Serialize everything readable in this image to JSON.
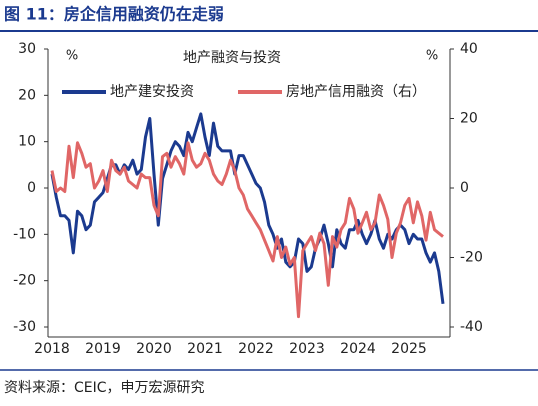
{
  "header": {
    "title": "图 11：房企信用融资仍在走弱"
  },
  "chart_data": {
    "type": "line",
    "title": "地产融资与投资",
    "y_unit": "%",
    "y2_unit": "%",
    "categories": [
      "2018",
      null,
      null,
      null,
      null,
      null,
      null,
      null,
      null,
      null,
      null,
      null,
      "2019",
      null,
      null,
      null,
      null,
      null,
      null,
      null,
      null,
      null,
      null,
      null,
      "2020",
      null,
      null,
      null,
      null,
      null,
      null,
      null,
      null,
      null,
      null,
      null,
      "2021",
      null,
      null,
      null,
      null,
      null,
      null,
      null,
      null,
      null,
      null,
      null,
      "2022",
      null,
      null,
      null,
      null,
      null,
      null,
      null,
      null,
      null,
      null,
      null,
      "2023",
      null,
      null,
      null,
      null,
      null,
      null,
      null,
      null,
      null,
      null,
      null,
      "2024",
      null,
      null,
      null,
      null,
      null,
      null,
      null,
      null,
      null,
      null,
      null,
      "2025",
      null,
      null,
      null,
      null,
      null,
      null,
      null,
      null
    ],
    "series": [
      {
        "name": "地产建安投资",
        "color": "#1b3a8f",
        "axis": "y",
        "values": [
          3,
          -2,
          -6,
          -6,
          -7,
          -14,
          -5,
          -6,
          -9,
          -8,
          -3,
          -2,
          -1,
          2,
          5,
          5,
          3,
          5,
          4,
          6,
          3,
          4,
          11,
          15,
          3,
          -8,
          2,
          5,
          8,
          10,
          9,
          7,
          12,
          10,
          13,
          16,
          11,
          7,
          14,
          9,
          8,
          8,
          8,
          3,
          7,
          7,
          5,
          3,
          1,
          0,
          -3,
          -8,
          -10,
          -13,
          -11,
          -16,
          -17,
          -16,
          -11,
          -12,
          -18,
          -17,
          -13,
          -11,
          -8,
          -12,
          -17,
          -9,
          -12,
          -13,
          -9,
          -9,
          -7,
          -10,
          -12,
          -10,
          -7,
          -11,
          -13,
          -10,
          -11,
          -9,
          -8,
          -9,
          -12,
          -10,
          -11,
          -11,
          -14,
          -16,
          -14,
          -18,
          -25
        ]
      },
      {
        "name": "房地产信用融资（右）",
        "color": "#e06666",
        "axis": "y2",
        "values": [
          5,
          -1,
          0,
          -1,
          12,
          3,
          13,
          10,
          6,
          7,
          0,
          2,
          5,
          -1,
          8,
          5,
          4,
          6,
          2,
          1,
          0,
          4,
          3,
          3,
          -5,
          -8,
          9,
          10,
          6,
          9,
          7,
          4,
          13,
          8,
          6,
          7,
          10,
          8,
          4,
          2,
          1,
          4,
          8,
          5,
          0,
          -2,
          -6,
          -8,
          -10,
          -12,
          -15,
          -18,
          -21,
          -14,
          -20,
          -17,
          -22,
          -20,
          -37,
          -18,
          -16,
          -14,
          -18,
          -13,
          -16,
          -28,
          -14,
          -17,
          -12,
          -10,
          -3,
          -6,
          -13,
          -10,
          -7,
          -12,
          -10,
          -2,
          -5,
          -9,
          -20,
          -13,
          -10,
          -5,
          -3,
          -10,
          -4,
          -8,
          -15,
          -7,
          -12,
          -13,
          -14
        ]
      }
    ],
    "ylim": [
      -30,
      30
    ],
    "yticks": [
      -30,
      -20,
      -10,
      0,
      10,
      20,
      30
    ],
    "y2lim": [
      -40,
      40
    ],
    "y2ticks": [
      -40,
      -20,
      0,
      20,
      40
    ],
    "grid": false
  },
  "footer": {
    "source": "资料来源：CEIC，申万宏源研究"
  }
}
